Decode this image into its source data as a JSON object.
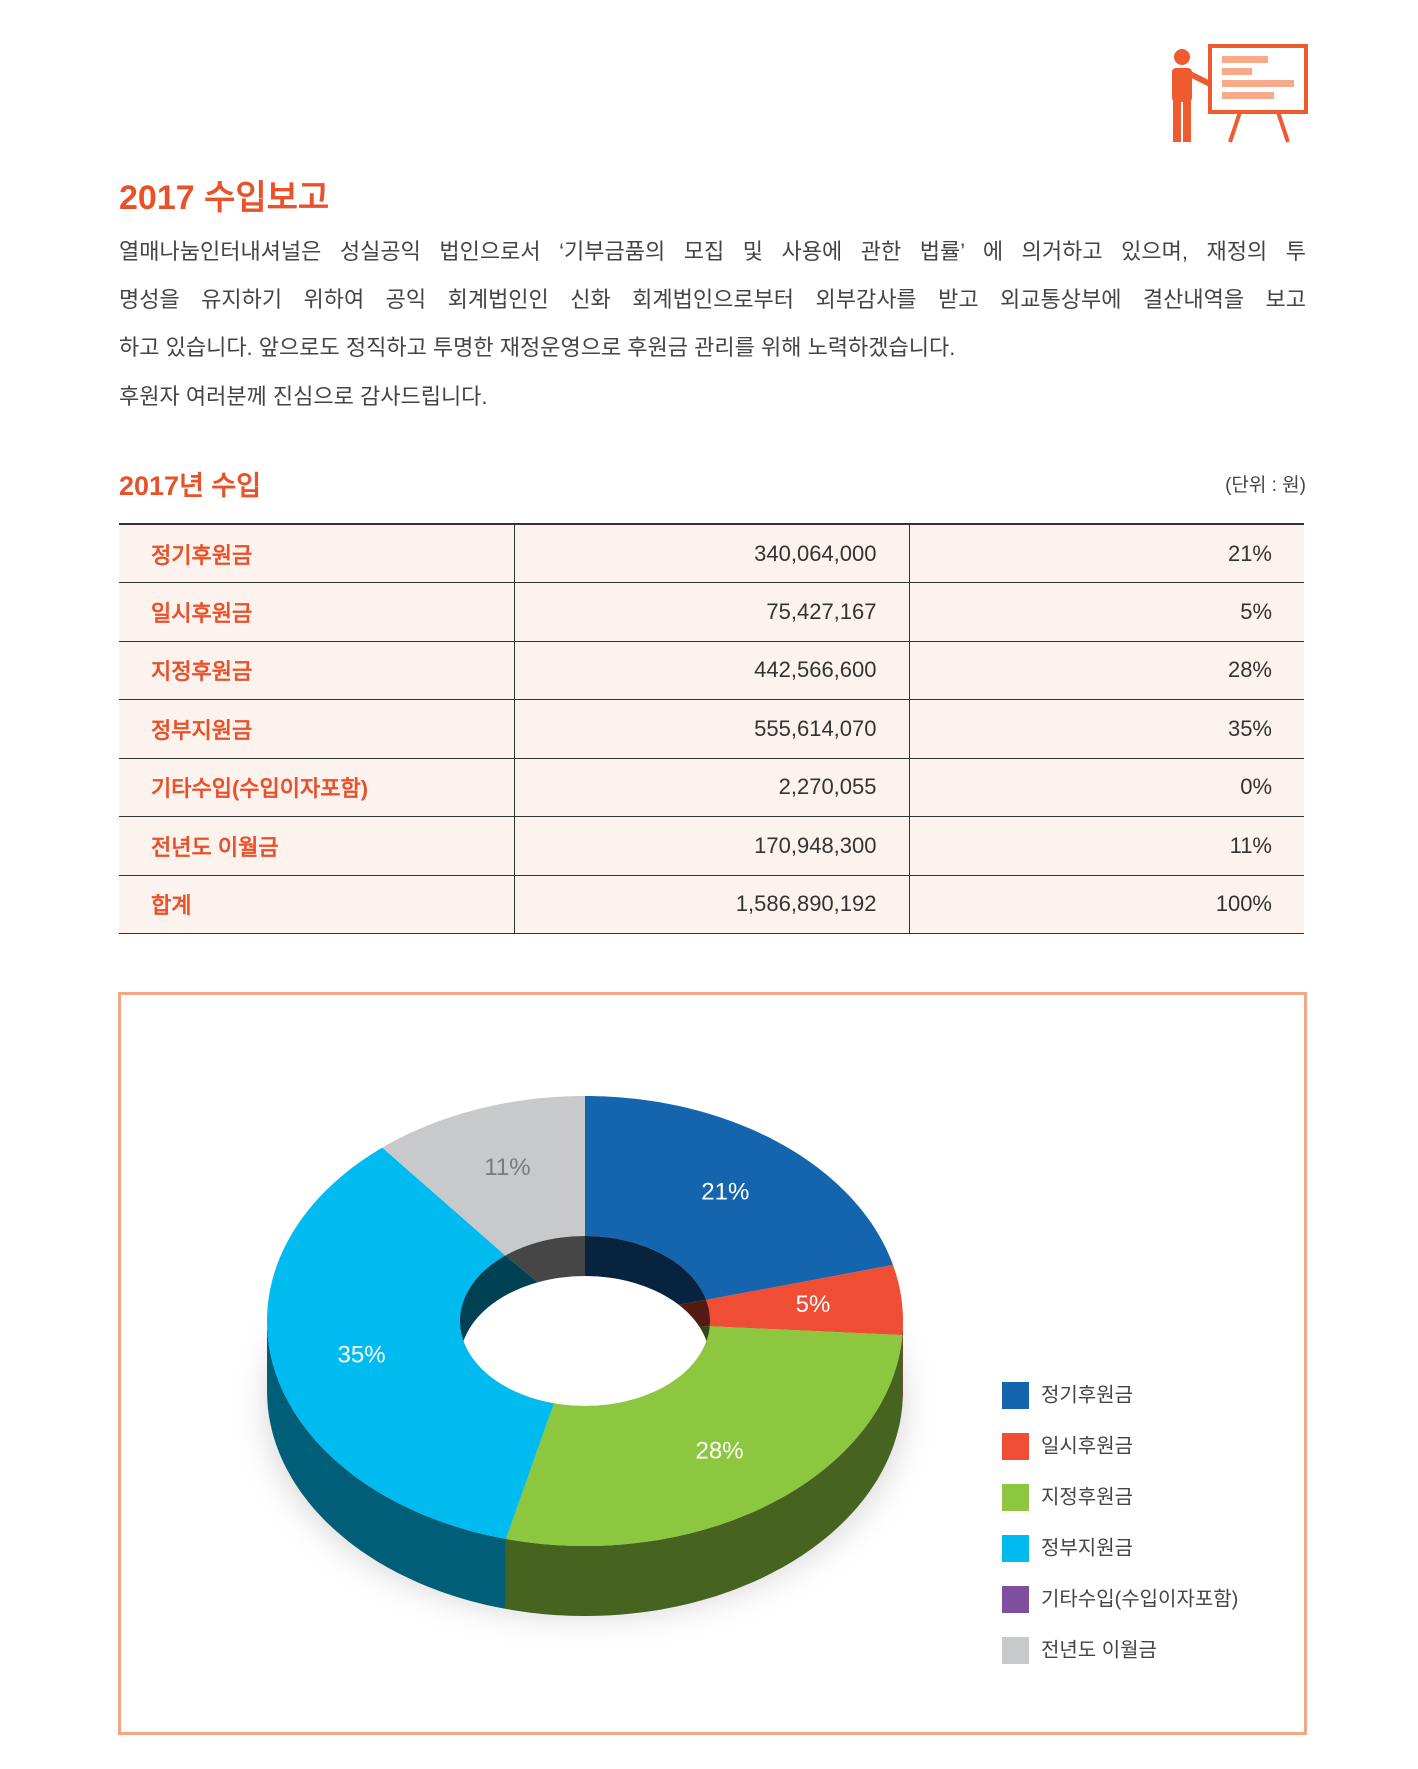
{
  "header": {
    "title": "2017 수입보고"
  },
  "intro": {
    "lines": [
      "열매나눔인터내셔널은 성실공익 법인으로서 ‘기부금품의 모집 및 사용에 관한 법률’ 에 의거하고 있으며, 재정의 투",
      "명성을 유지하기 위하여 공익 회계법인인 신화 회계법인으로부터 외부감사를 받고 외교통상부에 결산내역을 보고",
      "하고 있습니다. 앞으로도 정직하고 투명한 재정운영으로 후원금 관리를 위해 노력하겠습니다.",
      "후원자 여러분께 진심으로 감사드립니다."
    ]
  },
  "table": {
    "title": "2017년 수입",
    "unit": "(단위 : 원)",
    "rows": [
      [
        "정기후원금",
        "340,064,000",
        "21%"
      ],
      [
        "일시후원금",
        "75,427,167",
        "5%"
      ],
      [
        "지정후원금",
        "442,566,600",
        "28%"
      ],
      [
        "정부지원금",
        "555,614,070",
        "35%"
      ],
      [
        "기타수입(수입이자포함)",
        "2,270,055",
        "0%"
      ],
      [
        "전년도 이월금",
        "170,948,300",
        "11%"
      ],
      [
        "합계",
        "1,586,890,192",
        "100%"
      ]
    ]
  },
  "chart_data": {
    "type": "donut",
    "categories": [
      "정기후원금",
      "일시후원금",
      "지정후원금",
      "정부지원금",
      "기타수입(수입이자포함)",
      "전년도 이월금"
    ],
    "values": [
      21,
      5,
      28,
      35,
      0,
      11
    ],
    "value_labels": [
      "21%",
      "5%",
      "28%",
      "35%",
      null,
      "11%"
    ],
    "colors": [
      "#1565ae",
      "#ef4e35",
      "#8dc63f",
      "#00bbf0",
      "#7e4f9e",
      "#c8c9cb"
    ],
    "legend": "right"
  }
}
